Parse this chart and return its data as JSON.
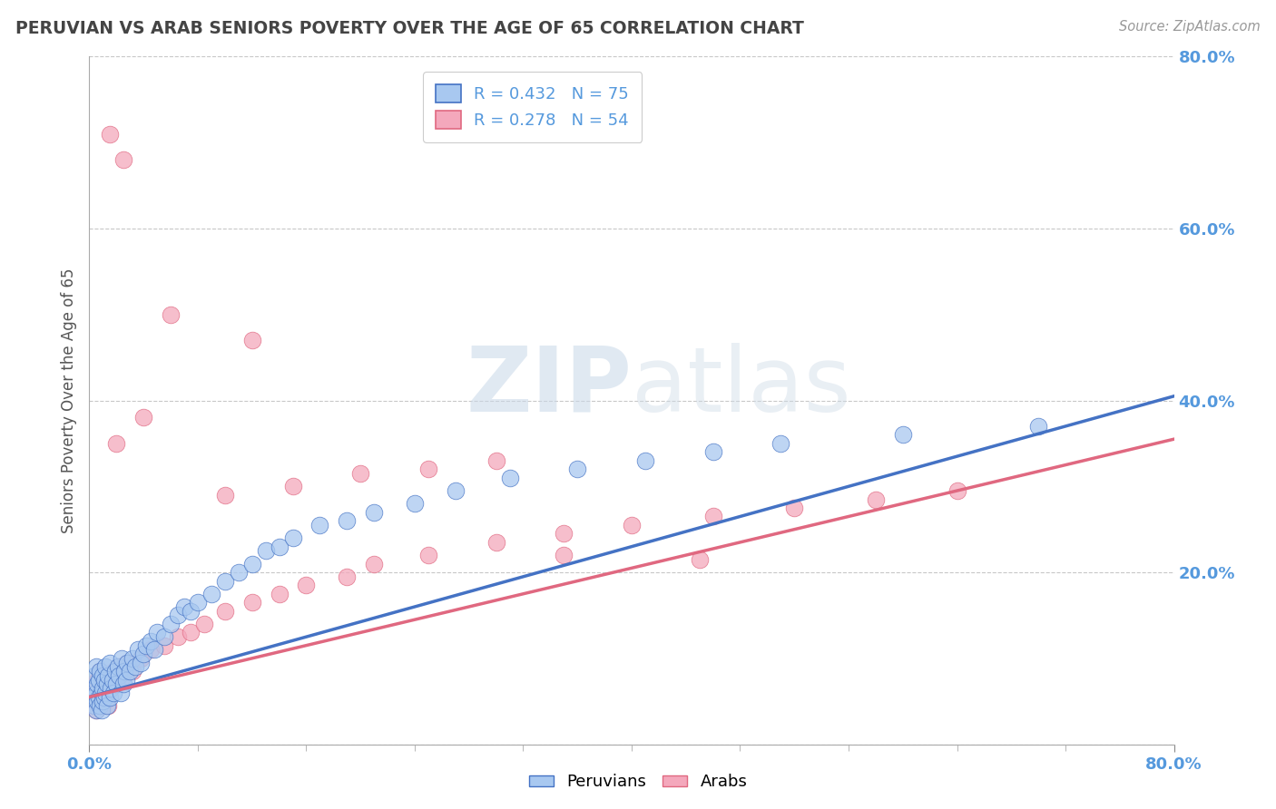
{
  "title": "PERUVIAN VS ARAB SENIORS POVERTY OVER THE AGE OF 65 CORRELATION CHART",
  "ylabel": "Seniors Poverty Over the Age of 65",
  "source_text": "Source: ZipAtlas.com",
  "xlim": [
    0,
    0.8
  ],
  "ylim": [
    0,
    0.8
  ],
  "peruvian_color": "#A8C8F0",
  "arab_color": "#F4A8BC",
  "peruvian_line_color": "#4472C4",
  "arab_line_color": "#E06880",
  "R_peruvian": 0.432,
  "N_peruvian": 75,
  "R_arab": 0.278,
  "N_arab": 54,
  "legend_label_peruvian": "Peruvians",
  "legend_label_arab": "Arabs",
  "background_color": "#FFFFFF",
  "grid_color": "#C8C8C8",
  "title_color": "#444444",
  "axis_label_color": "#5599DD",
  "peruvians_x": [
    0.002,
    0.003,
    0.004,
    0.004,
    0.005,
    0.005,
    0.005,
    0.006,
    0.006,
    0.007,
    0.007,
    0.008,
    0.008,
    0.009,
    0.009,
    0.01,
    0.01,
    0.01,
    0.011,
    0.011,
    0.012,
    0.012,
    0.013,
    0.013,
    0.014,
    0.015,
    0.015,
    0.016,
    0.017,
    0.018,
    0.019,
    0.02,
    0.021,
    0.022,
    0.023,
    0.024,
    0.025,
    0.026,
    0.027,
    0.028,
    0.03,
    0.032,
    0.034,
    0.036,
    0.038,
    0.04,
    0.042,
    0.045,
    0.048,
    0.05,
    0.055,
    0.06,
    0.065,
    0.07,
    0.075,
    0.08,
    0.09,
    0.1,
    0.11,
    0.12,
    0.13,
    0.14,
    0.15,
    0.17,
    0.19,
    0.21,
    0.24,
    0.27,
    0.31,
    0.36,
    0.41,
    0.46,
    0.51,
    0.6,
    0.7
  ],
  "peruvians_y": [
    0.065,
    0.055,
    0.045,
    0.08,
    0.04,
    0.06,
    0.09,
    0.05,
    0.07,
    0.055,
    0.075,
    0.045,
    0.085,
    0.06,
    0.04,
    0.05,
    0.065,
    0.08,
    0.055,
    0.075,
    0.06,
    0.09,
    0.07,
    0.045,
    0.08,
    0.055,
    0.095,
    0.065,
    0.075,
    0.06,
    0.085,
    0.07,
    0.09,
    0.08,
    0.06,
    0.1,
    0.07,
    0.085,
    0.075,
    0.095,
    0.085,
    0.1,
    0.09,
    0.11,
    0.095,
    0.105,
    0.115,
    0.12,
    0.11,
    0.13,
    0.125,
    0.14,
    0.15,
    0.16,
    0.155,
    0.165,
    0.175,
    0.19,
    0.2,
    0.21,
    0.225,
    0.23,
    0.24,
    0.255,
    0.26,
    0.27,
    0.28,
    0.295,
    0.31,
    0.32,
    0.33,
    0.34,
    0.35,
    0.36,
    0.37
  ],
  "arabs_x": [
    0.002,
    0.003,
    0.004,
    0.005,
    0.006,
    0.007,
    0.008,
    0.009,
    0.01,
    0.011,
    0.012,
    0.013,
    0.014,
    0.015,
    0.016,
    0.018,
    0.02,
    0.022,
    0.025,
    0.028,
    0.032,
    0.038,
    0.045,
    0.055,
    0.065,
    0.075,
    0.085,
    0.1,
    0.12,
    0.14,
    0.16,
    0.19,
    0.21,
    0.25,
    0.3,
    0.35,
    0.4,
    0.46,
    0.52,
    0.58,
    0.64,
    0.1,
    0.15,
    0.2,
    0.25,
    0.3,
    0.06,
    0.12,
    0.35,
    0.45,
    0.02,
    0.04,
    0.015,
    0.025
  ],
  "arabs_y": [
    0.055,
    0.045,
    0.065,
    0.04,
    0.075,
    0.055,
    0.085,
    0.06,
    0.045,
    0.07,
    0.055,
    0.08,
    0.045,
    0.065,
    0.075,
    0.085,
    0.07,
    0.09,
    0.08,
    0.095,
    0.085,
    0.1,
    0.11,
    0.115,
    0.125,
    0.13,
    0.14,
    0.155,
    0.165,
    0.175,
    0.185,
    0.195,
    0.21,
    0.22,
    0.235,
    0.245,
    0.255,
    0.265,
    0.275,
    0.285,
    0.295,
    0.29,
    0.3,
    0.315,
    0.32,
    0.33,
    0.5,
    0.47,
    0.22,
    0.215,
    0.35,
    0.38,
    0.71,
    0.68
  ],
  "line_peruvian_x0": 0.0,
  "line_peruvian_y0": 0.055,
  "line_peruvian_x1": 0.8,
  "line_peruvian_y1": 0.405,
  "line_arab_x0": 0.0,
  "line_arab_y0": 0.055,
  "line_arab_x1": 0.8,
  "line_arab_y1": 0.355
}
